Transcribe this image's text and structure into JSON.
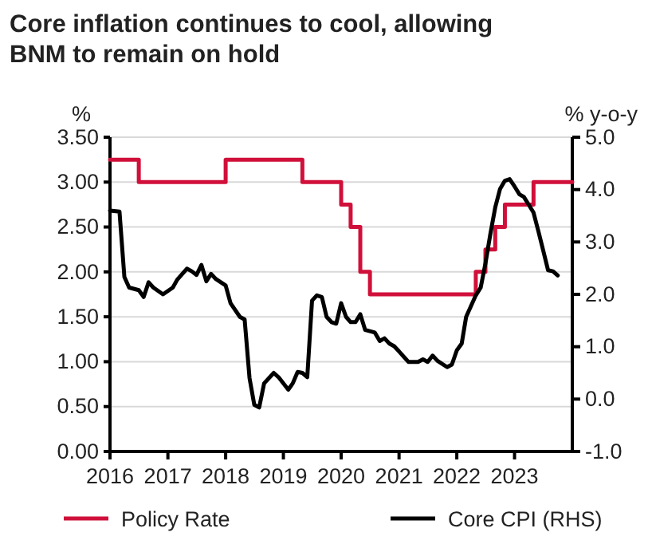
{
  "chart_data": {
    "type": "line",
    "title": "Core inflation continues to cool, allowing BNM to remain on hold",
    "ylabel": "%",
    "y2label": "% y-o-y",
    "xlim": [
      "2016-01",
      "2024-01"
    ],
    "xticks": [
      "2016",
      "2017",
      "2018",
      "2019",
      "2020",
      "2021",
      "2022",
      "2023"
    ],
    "ylim": [
      0,
      3.5
    ],
    "yticks": [
      {
        "value": 0,
        "label": "0.00"
      },
      {
        "value": 0.5,
        "label": "0.50"
      },
      {
        "value": 1,
        "label": "1.00"
      },
      {
        "value": 1.5,
        "label": "1.50"
      },
      {
        "value": 2,
        "label": "2.00"
      },
      {
        "value": 2.5,
        "label": "2.50"
      },
      {
        "value": 3,
        "label": "3.00"
      },
      {
        "value": 3.5,
        "label": "3.50"
      }
    ],
    "y2lim": [
      -1,
      5
    ],
    "y2ticks": [
      {
        "value": -1,
        "label": "-1.0"
      },
      {
        "value": 0,
        "label": "0.0"
      },
      {
        "value": 1,
        "label": "1.0"
      },
      {
        "value": 2,
        "label": "2.0"
      },
      {
        "value": 3,
        "label": "3.0"
      },
      {
        "value": 4,
        "label": "4.0"
      },
      {
        "value": 5,
        "label": "5.0"
      }
    ],
    "grid": "y",
    "legend": "bottom",
    "series": [
      {
        "name": "Policy Rate",
        "type": "step",
        "color": "#d0103a",
        "x": [
          "2016-01",
          "2016-07",
          "2018-01",
          "2019-05",
          "2020-01",
          "2020-03",
          "2020-05",
          "2020-07",
          "2022-05",
          "2022-07",
          "2022-09",
          "2022-11",
          "2023-05",
          "2024-01"
        ],
        "values": [
          3.25,
          3.0,
          3.25,
          3.0,
          2.75,
          2.5,
          2.0,
          1.75,
          2.0,
          2.25,
          2.5,
          2.75,
          3.0,
          3.0
        ]
      },
      {
        "name": "Core CPI (RHS)",
        "axis": "y2",
        "color": "#000000",
        "x": [
          "2016-01",
          "2016-03",
          "2016-04",
          "2016-05",
          "2016-07",
          "2016-08",
          "2016-09",
          "2016-10",
          "2016-12",
          "2017-02",
          "2017-03",
          "2017-05",
          "2017-06",
          "2017-07",
          "2017-08",
          "2017-09",
          "2017-10",
          "2017-11",
          "2018-01",
          "2018-02",
          "2018-04",
          "2018-05",
          "2018-06",
          "2018-07",
          "2018-08",
          "2018-09",
          "2018-11",
          "2018-12",
          "2019-02",
          "2019-03",
          "2019-04",
          "2019-05",
          "2019-06",
          "2019-07",
          "2019-08",
          "2019-09",
          "2019-10",
          "2019-11",
          "2019-12",
          "2020-01",
          "2020-02",
          "2020-03",
          "2020-04",
          "2020-05",
          "2020-06",
          "2020-08",
          "2020-09",
          "2020-10",
          "2020-11",
          "2020-12",
          "2021-01",
          "2021-03",
          "2021-05",
          "2021-06",
          "2021-07",
          "2021-08",
          "2021-09",
          "2021-11",
          "2021-12",
          "2022-01",
          "2022-02",
          "2022-03",
          "2022-05",
          "2022-06",
          "2022-07",
          "2022-08",
          "2022-09",
          "2022-10",
          "2022-11",
          "2022-12",
          "2023-01",
          "2023-02",
          "2023-03",
          "2023-04",
          "2023-05",
          "2023-06",
          "2023-07",
          "2023-08",
          "2023-09",
          "2023-10"
        ],
        "values": [
          3.6,
          3.58,
          2.33,
          2.13,
          2.08,
          1.95,
          2.23,
          2.13,
          2.0,
          2.13,
          2.28,
          2.49,
          2.44,
          2.37,
          2.56,
          2.25,
          2.39,
          2.29,
          2.17,
          1.83,
          1.57,
          1.52,
          0.4,
          -0.11,
          -0.16,
          0.3,
          0.5,
          0.42,
          0.18,
          0.3,
          0.52,
          0.5,
          0.42,
          1.88,
          1.98,
          1.95,
          1.57,
          1.47,
          1.44,
          1.83,
          1.57,
          1.47,
          1.47,
          1.62,
          1.32,
          1.27,
          1.11,
          1.16,
          1.06,
          1.01,
          0.91,
          0.71,
          0.71,
          0.76,
          0.71,
          0.83,
          0.73,
          0.61,
          0.66,
          0.93,
          1.06,
          1.57,
          1.98,
          2.13,
          2.59,
          3.15,
          3.66,
          4.01,
          4.17,
          4.2,
          4.06,
          3.91,
          3.86,
          3.71,
          3.56,
          3.2,
          2.84,
          2.46,
          2.44,
          2.36
        ]
      }
    ]
  }
}
